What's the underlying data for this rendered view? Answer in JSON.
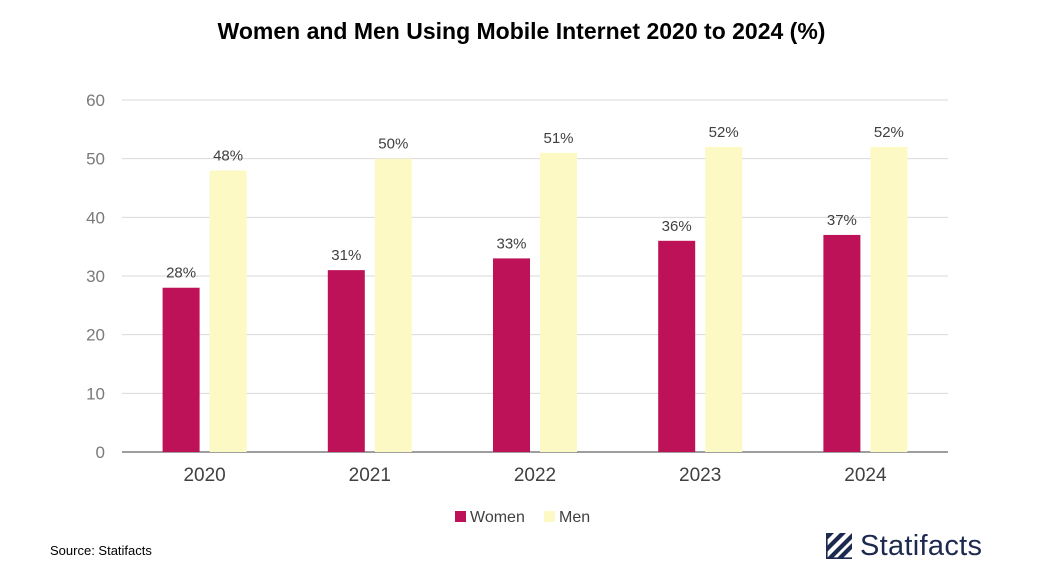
{
  "chart_data": {
    "type": "bar",
    "title": "Women and Men Using Mobile Internet 2020 to 2024 (%)",
    "categories": [
      "2020",
      "2021",
      "2022",
      "2023",
      "2024"
    ],
    "series": [
      {
        "name": "Women",
        "values": [
          28,
          31,
          33,
          36,
          37
        ],
        "labels": [
          "28%",
          "31%",
          "33%",
          "36%",
          "37%"
        ],
        "color": "#bd1257"
      },
      {
        "name": "Men",
        "values": [
          48,
          50,
          51,
          52,
          52
        ],
        "labels": [
          "48%",
          "50%",
          "51%",
          "52%",
          "52%"
        ],
        "color": "#fdf9c4"
      }
    ],
    "yticks": [
      "0",
      "10",
      "20",
      "30",
      "40",
      "50",
      "60"
    ],
    "ylim": [
      0,
      60
    ],
    "xlabel": "",
    "ylabel": "",
    "grid": true,
    "legend_position": "bottom-center"
  },
  "footer": {
    "source": "Source: Statifacts",
    "brand": "Statifacts",
    "brand_color": "#1d2a4f"
  }
}
